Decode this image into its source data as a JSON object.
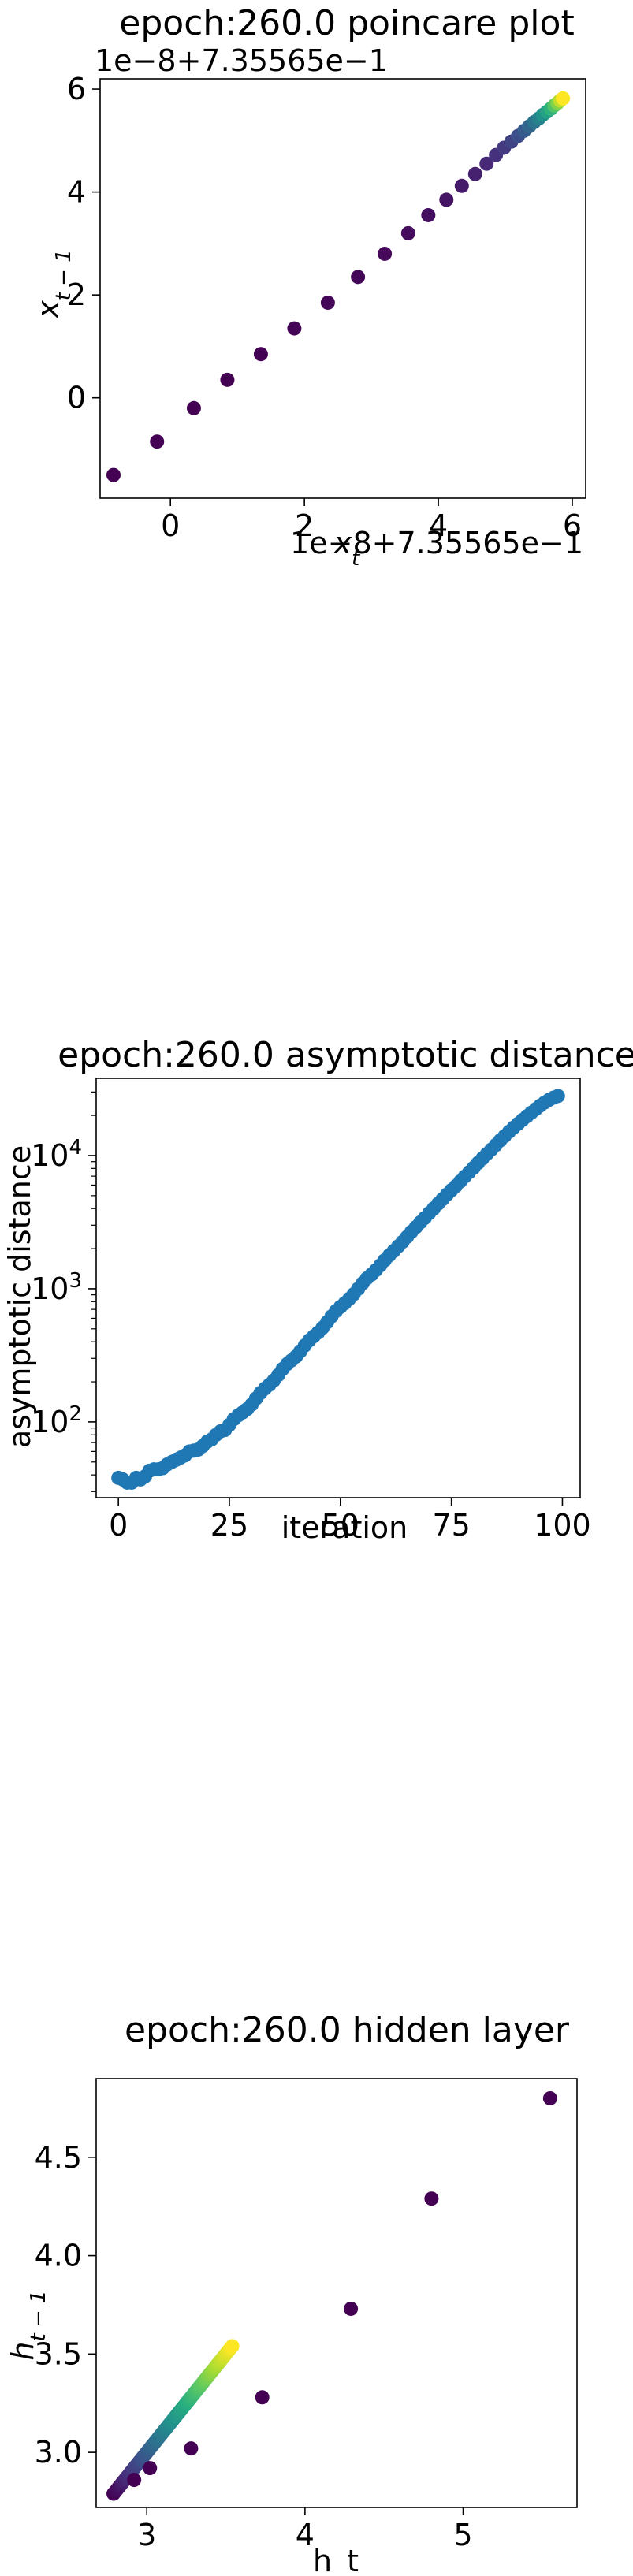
{
  "chart_data": [
    {
      "type": "scatter",
      "title": "epoch:260.0 poincare plot",
      "xlabel": "x_t",
      "ylabel": "x_{t-1}",
      "x_offset_label": "1e−8+7.35565e−1",
      "y_offset_label": "1e−8+7.35565e−1",
      "xlim": [
        -1.05,
        6.2
      ],
      "ylim": [
        -1.95,
        6.2
      ],
      "xticks": [
        0,
        2,
        4,
        6
      ],
      "xtick_labels": [
        "0",
        "2",
        "4",
        "6"
      ],
      "yticks": [
        0,
        2,
        4,
        6
      ],
      "ytick_labels": [
        "0",
        "2",
        "4",
        "6"
      ],
      "colormap": "viridis",
      "colormap_stops": [
        "#440154",
        "#472d7b",
        "#3b528b",
        "#2c728e",
        "#21918c",
        "#28ae80",
        "#5ec962",
        "#addc30",
        "#fde725"
      ],
      "x": [
        -0.85,
        -0.2,
        0.35,
        0.85,
        1.35,
        1.85,
        2.35,
        2.8,
        3.2,
        3.55,
        3.85,
        4.12,
        4.35,
        4.55,
        4.72,
        4.86,
        4.98,
        5.09,
        5.19,
        5.28,
        5.36,
        5.43,
        5.5,
        5.56,
        5.62,
        5.68,
        5.73,
        5.78,
        5.82,
        5.86
      ],
      "y": [
        -1.5,
        -0.85,
        -0.2,
        0.35,
        0.85,
        1.35,
        1.85,
        2.35,
        2.8,
        3.2,
        3.55,
        3.85,
        4.12,
        4.35,
        4.55,
        4.72,
        4.86,
        4.98,
        5.09,
        5.19,
        5.28,
        5.36,
        5.43,
        5.5,
        5.56,
        5.62,
        5.68,
        5.73,
        5.78,
        5.82
      ]
    },
    {
      "type": "scatter",
      "title": "epoch:260.0 asymptotic distance",
      "xlabel": "iteration",
      "ylabel": "asymptotic distance",
      "yscale": "log",
      "xlim": [
        -5,
        104
      ],
      "ylim": [
        27,
        38000
      ],
      "xticks": [
        0,
        25,
        50,
        75,
        100
      ],
      "xtick_labels": [
        "0",
        "25",
        "50",
        "75",
        "100"
      ],
      "yticks": [
        100,
        1000,
        10000
      ],
      "ytick_labels": [
        "10^2",
        "10^3",
        "10^4"
      ],
      "color": "#1f77b4",
      "x": [
        0,
        1,
        2,
        3,
        4,
        5,
        6,
        7,
        8,
        9,
        10,
        11,
        12,
        13,
        14,
        15,
        16,
        17,
        18,
        19,
        20,
        21,
        22,
        23,
        24,
        25,
        26,
        27,
        28,
        29,
        30,
        31,
        32,
        33,
        34,
        35,
        36,
        37,
        38,
        39,
        40,
        41,
        42,
        43,
        44,
        45,
        46,
        47,
        48,
        49,
        50,
        51,
        52,
        53,
        54,
        55,
        56,
        57,
        58,
        59,
        60,
        61,
        62,
        63,
        64,
        65,
        66,
        67,
        68,
        69,
        70,
        71,
        72,
        73,
        74,
        75,
        76,
        77,
        78,
        79,
        80,
        81,
        82,
        83,
        84,
        85,
        86,
        87,
        88,
        89,
        90,
        91,
        92,
        93,
        94,
        95,
        96,
        97,
        98,
        99
      ],
      "y": [
        38,
        37,
        35,
        35,
        38,
        37,
        39,
        43,
        44,
        44,
        45,
        48,
        50,
        52,
        54,
        56,
        60,
        61,
        62,
        66,
        71,
        74,
        80,
        85,
        87,
        95,
        105,
        112,
        118,
        125,
        135,
        150,
        165,
        178,
        190,
        205,
        225,
        250,
        272,
        290,
        310,
        340,
        375,
        410,
        440,
        470,
        510,
        560,
        620,
        680,
        730,
        780,
        840,
        910,
        1000,
        1100,
        1200,
        1280,
        1380,
        1500,
        1640,
        1780,
        1920,
        2080,
        2250,
        2450,
        2680,
        2900,
        3150,
        3400,
        3700,
        4000,
        4350,
        4700,
        5100,
        5500,
        5900,
        6400,
        6950,
        7500,
        8100,
        8800,
        9500,
        10300,
        11100,
        12000,
        13000,
        14000,
        15100,
        16200,
        17300,
        18500,
        19700,
        21000,
        22300,
        23700,
        25000,
        26200,
        27200,
        28000
      ]
    },
    {
      "type": "scatter",
      "title": "epoch:260.0 hidden layer",
      "xlabel": "h_t",
      "ylabel": "h_{t-1}",
      "xlim": [
        2.68,
        5.72
      ],
      "ylim": [
        2.72,
        4.9
      ],
      "xticks": [
        3,
        4,
        5
      ],
      "xtick_labels": [
        "3",
        "4",
        "5"
      ],
      "yticks": [
        3.0,
        3.5,
        4.0,
        4.5
      ],
      "ytick_labels": [
        "3.0",
        "3.5",
        "4.0",
        "4.5"
      ],
      "colormap": "viridis",
      "outliers": {
        "x": [
          5.55,
          4.8,
          4.29,
          3.73,
          3.28,
          3.02,
          2.92
        ],
        "y": [
          4.8,
          4.29,
          3.73,
          3.28,
          3.02,
          2.92,
          2.86
        ]
      },
      "cluster_range": {
        "x": [
          2.79,
          3.54
        ],
        "y": [
          2.79,
          3.54
        ]
      }
    }
  ]
}
